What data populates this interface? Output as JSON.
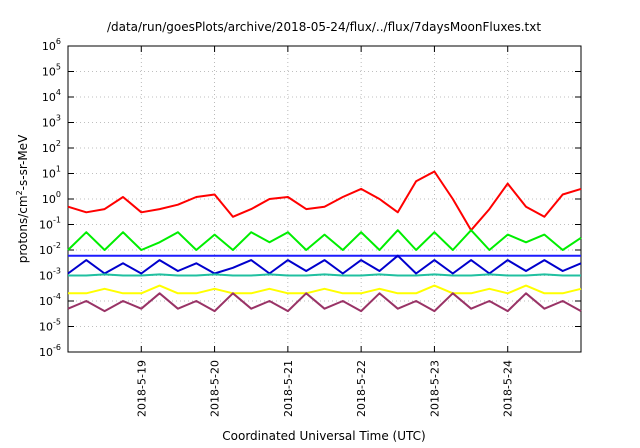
{
  "chart_data": {
    "type": "line",
    "title": "/data/run/goesPlots/archive/2018-05-24/flux/../flux/7daysMoonFluxes.txt",
    "xlabel": "Coordinated Universal Time (UTC)",
    "ylabel": {
      "pre": "protons/cm",
      "sup": "2",
      "post": "-s-sr-MeV"
    },
    "yscale": "log",
    "ylim": [
      1e-06,
      1000000.0
    ],
    "y_ticks": [
      {
        "base": "10",
        "exp": "-6",
        "value": 1e-06
      },
      {
        "base": "10",
        "exp": "-5",
        "value": 1e-05
      },
      {
        "base": "10",
        "exp": "-4",
        "value": 0.0001
      },
      {
        "base": "10",
        "exp": "-3",
        "value": 0.001
      },
      {
        "base": "10",
        "exp": "-2",
        "value": 0.01
      },
      {
        "base": "10",
        "exp": "-1",
        "value": 0.1
      },
      {
        "base": "10",
        "exp": "0",
        "value": 1
      },
      {
        "base": "10",
        "exp": "1",
        "value": 10.0
      },
      {
        "base": "10",
        "exp": "2",
        "value": 100.0
      },
      {
        "base": "10",
        "exp": "3",
        "value": 1000.0
      },
      {
        "base": "10",
        "exp": "4",
        "value": 10000.0
      },
      {
        "base": "10",
        "exp": "5",
        "value": 100000.0
      },
      {
        "base": "10",
        "exp": "6",
        "value": 1000000.0
      }
    ],
    "xlim": [
      "2018-05-18",
      "2018-05-25"
    ],
    "x_ticks": [
      {
        "label": "2018-5-19",
        "date": "2018-05-19"
      },
      {
        "label": "2018-5-20",
        "date": "2018-05-20"
      },
      {
        "label": "2018-5-21",
        "date": "2018-05-21"
      },
      {
        "label": "2018-5-22",
        "date": "2018-05-22"
      },
      {
        "label": "2018-5-23",
        "date": "2018-05-23"
      },
      {
        "label": "2018-5-24",
        "date": "2018-05-24"
      }
    ],
    "grid": true,
    "series": [
      {
        "color": "#ff0000",
        "x": [
          "2018-05-18",
          "2018-05-18T06",
          "2018-05-18T12",
          "2018-05-18T18",
          "2018-05-19",
          "2018-05-19T06",
          "2018-05-19T12",
          "2018-05-19T18",
          "2018-05-20",
          "2018-05-20T06",
          "2018-05-20T12",
          "2018-05-20T18",
          "2018-05-21",
          "2018-05-21T06",
          "2018-05-21T12",
          "2018-05-21T18",
          "2018-05-22",
          "2018-05-22T06",
          "2018-05-22T12",
          "2018-05-22T18",
          "2018-05-23",
          "2018-05-23T06",
          "2018-05-23T12",
          "2018-05-23T18",
          "2018-05-24",
          "2018-05-24T06",
          "2018-05-24T12",
          "2018-05-24T18",
          "2018-05-25"
        ],
        "values": [
          0.5,
          0.3,
          0.4,
          1.2,
          0.3,
          0.4,
          0.6,
          1.2,
          1.5,
          0.2,
          0.4,
          1.0,
          1.2,
          0.4,
          0.5,
          1.2,
          2.5,
          1.0,
          0.3,
          5.0,
          12,
          1.0,
          0.06,
          0.4,
          4.0,
          0.5,
          0.2,
          1.5,
          2.5
        ]
      },
      {
        "color": "#00ee00",
        "x": [
          "2018-05-18",
          "2018-05-18T06",
          "2018-05-18T12",
          "2018-05-18T18",
          "2018-05-19",
          "2018-05-19T06",
          "2018-05-19T12",
          "2018-05-19T18",
          "2018-05-20",
          "2018-05-20T06",
          "2018-05-20T12",
          "2018-05-20T18",
          "2018-05-21",
          "2018-05-21T06",
          "2018-05-21T12",
          "2018-05-21T18",
          "2018-05-22",
          "2018-05-22T06",
          "2018-05-22T12",
          "2018-05-22T18",
          "2018-05-23",
          "2018-05-23T06",
          "2018-05-23T12",
          "2018-05-23T18",
          "2018-05-24",
          "2018-05-24T06",
          "2018-05-24T12",
          "2018-05-24T18",
          "2018-05-25"
        ],
        "values": [
          0.01,
          0.05,
          0.01,
          0.05,
          0.01,
          0.02,
          0.05,
          0.01,
          0.04,
          0.01,
          0.05,
          0.02,
          0.05,
          0.01,
          0.04,
          0.01,
          0.05,
          0.01,
          0.06,
          0.01,
          0.05,
          0.01,
          0.06,
          0.01,
          0.04,
          0.02,
          0.04,
          0.01,
          0.03
        ]
      },
      {
        "color": "#1c1cff",
        "x": [
          "2018-05-18",
          "2018-05-18T06",
          "2018-05-18T12",
          "2018-05-18T18",
          "2018-05-19",
          "2018-05-19T06",
          "2018-05-19T12",
          "2018-05-19T18",
          "2018-05-20",
          "2018-05-20T06",
          "2018-05-20T12",
          "2018-05-20T18",
          "2018-05-21",
          "2018-05-21T06",
          "2018-05-21T12",
          "2018-05-21T18",
          "2018-05-22",
          "2018-05-22T06",
          "2018-05-22T12",
          "2018-05-22T18",
          "2018-05-23",
          "2018-05-23T06",
          "2018-05-23T12",
          "2018-05-23T18",
          "2018-05-24",
          "2018-05-24T06",
          "2018-05-24T12",
          "2018-05-24T18",
          "2018-05-25"
        ],
        "values": [
          0.006,
          0.006,
          0.006,
          0.006,
          0.006,
          0.006,
          0.006,
          0.006,
          0.006,
          0.006,
          0.006,
          0.006,
          0.006,
          0.006,
          0.006,
          0.006,
          0.006,
          0.006,
          0.006,
          0.006,
          0.006,
          0.006,
          0.006,
          0.006,
          0.006,
          0.006,
          0.006,
          0.006,
          0.006
        ]
      },
      {
        "color": "#0000cc",
        "x": [
          "2018-05-18",
          "2018-05-18T06",
          "2018-05-18T12",
          "2018-05-18T18",
          "2018-05-19",
          "2018-05-19T06",
          "2018-05-19T12",
          "2018-05-19T18",
          "2018-05-20",
          "2018-05-20T06",
          "2018-05-20T12",
          "2018-05-20T18",
          "2018-05-21",
          "2018-05-21T06",
          "2018-05-21T12",
          "2018-05-21T18",
          "2018-05-22",
          "2018-05-22T06",
          "2018-05-22T12",
          "2018-05-22T18",
          "2018-05-23",
          "2018-05-23T06",
          "2018-05-23T12",
          "2018-05-23T18",
          "2018-05-24",
          "2018-05-24T06",
          "2018-05-24T12",
          "2018-05-24T18",
          "2018-05-25"
        ],
        "values": [
          0.0012,
          0.004,
          0.0012,
          0.003,
          0.0012,
          0.004,
          0.0015,
          0.003,
          0.0012,
          0.002,
          0.004,
          0.0012,
          0.004,
          0.0015,
          0.004,
          0.0012,
          0.004,
          0.0015,
          0.006,
          0.0012,
          0.004,
          0.0012,
          0.004,
          0.0012,
          0.004,
          0.0015,
          0.004,
          0.0015,
          0.003
        ]
      },
      {
        "color": "#20c0a0",
        "x": [
          "2018-05-18",
          "2018-05-18T06",
          "2018-05-18T12",
          "2018-05-18T18",
          "2018-05-19",
          "2018-05-19T06",
          "2018-05-19T12",
          "2018-05-19T18",
          "2018-05-20",
          "2018-05-20T06",
          "2018-05-20T12",
          "2018-05-20T18",
          "2018-05-21",
          "2018-05-21T06",
          "2018-05-21T12",
          "2018-05-21T18",
          "2018-05-22",
          "2018-05-22T06",
          "2018-05-22T12",
          "2018-05-22T18",
          "2018-05-23",
          "2018-05-23T06",
          "2018-05-23T12",
          "2018-05-23T18",
          "2018-05-24",
          "2018-05-24T06",
          "2018-05-24T12",
          "2018-05-24T18",
          "2018-05-25"
        ],
        "values": [
          0.001,
          0.001,
          0.0011,
          0.001,
          0.001,
          0.0011,
          0.001,
          0.001,
          0.0011,
          0.001,
          0.001,
          0.0011,
          0.001,
          0.001,
          0.0011,
          0.001,
          0.001,
          0.0011,
          0.001,
          0.001,
          0.0011,
          0.001,
          0.001,
          0.0011,
          0.001,
          0.001,
          0.0011,
          0.001,
          0.001
        ]
      },
      {
        "color": "#ffff00",
        "x": [
          "2018-05-18",
          "2018-05-18T06",
          "2018-05-18T12",
          "2018-05-18T18",
          "2018-05-19",
          "2018-05-19T06",
          "2018-05-19T12",
          "2018-05-19T18",
          "2018-05-20",
          "2018-05-20T06",
          "2018-05-20T12",
          "2018-05-20T18",
          "2018-05-21",
          "2018-05-21T06",
          "2018-05-21T12",
          "2018-05-21T18",
          "2018-05-22",
          "2018-05-22T06",
          "2018-05-22T12",
          "2018-05-22T18",
          "2018-05-23",
          "2018-05-23T06",
          "2018-05-23T12",
          "2018-05-23T18",
          "2018-05-24",
          "2018-05-24T06",
          "2018-05-24T12",
          "2018-05-24T18",
          "2018-05-25"
        ],
        "values": [
          0.0002,
          0.0002,
          0.0003,
          0.0002,
          0.0002,
          0.0004,
          0.0002,
          0.0002,
          0.0003,
          0.0002,
          0.0002,
          0.0003,
          0.0002,
          0.0002,
          0.0003,
          0.0002,
          0.0002,
          0.0003,
          0.0002,
          0.0002,
          0.0004,
          0.0002,
          0.0002,
          0.0003,
          0.0002,
          0.0004,
          0.0002,
          0.0002,
          0.0003
        ]
      },
      {
        "color": "#993366",
        "x": [
          "2018-05-18",
          "2018-05-18T06",
          "2018-05-18T12",
          "2018-05-18T18",
          "2018-05-19",
          "2018-05-19T06",
          "2018-05-19T12",
          "2018-05-19T18",
          "2018-05-20",
          "2018-05-20T06",
          "2018-05-20T12",
          "2018-05-20T18",
          "2018-05-21",
          "2018-05-21T06",
          "2018-05-21T12",
          "2018-05-21T18",
          "2018-05-22",
          "2018-05-22T06",
          "2018-05-22T12",
          "2018-05-22T18",
          "2018-05-23",
          "2018-05-23T06",
          "2018-05-23T12",
          "2018-05-23T18",
          "2018-05-24",
          "2018-05-24T06",
          "2018-05-24T12",
          "2018-05-24T18",
          "2018-05-25"
        ],
        "values": [
          5e-05,
          0.0001,
          4e-05,
          0.0001,
          5e-05,
          0.0002,
          5e-05,
          0.0001,
          4e-05,
          0.0002,
          5e-05,
          0.0001,
          4e-05,
          0.0002,
          5e-05,
          0.0001,
          4e-05,
          0.0002,
          5e-05,
          0.0001,
          4e-05,
          0.0002,
          5e-05,
          0.0001,
          4e-05,
          0.0002,
          5e-05,
          0.0001,
          4e-05
        ]
      }
    ]
  }
}
